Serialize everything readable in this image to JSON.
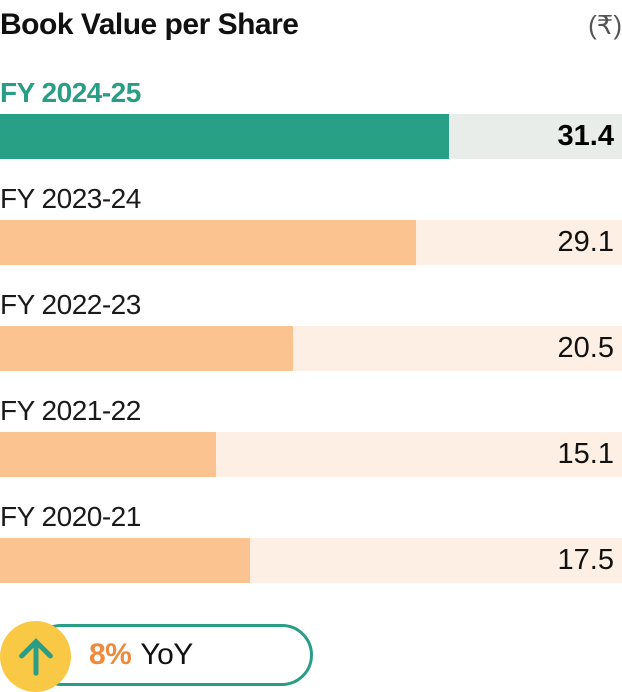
{
  "header": {
    "title": "Book Value per Share",
    "unit": "(₹)"
  },
  "chart_data": {
    "type": "bar",
    "orientation": "horizontal",
    "title": "Book Value per Share",
    "unit": "₹",
    "categories": [
      "FY 2024-25",
      "FY 2023-24",
      "FY 2022-23",
      "FY 2021-22",
      "FY 2020-21"
    ],
    "values": [
      31.4,
      29.1,
      20.5,
      15.1,
      17.5
    ],
    "xlim": [
      0,
      43.5
    ],
    "highlight_index": 0,
    "value_labels": [
      "31.4",
      "29.1",
      "20.5",
      "15.1",
      "17.5"
    ]
  },
  "colors": {
    "highlight_fill": "#27a086",
    "highlight_track": "#e8ede9",
    "highlight_label": "#2a9d87",
    "bar_fill": "#fbc38f",
    "bar_track": "#fdefe3",
    "badge_circle": "#f9c845",
    "badge_border": "#2a9d87",
    "arrow": "#2a9d87",
    "growth_text": "#ee8a3c"
  },
  "badge": {
    "icon": "up-arrow-icon",
    "growth": "8%",
    "label": "YoY"
  }
}
